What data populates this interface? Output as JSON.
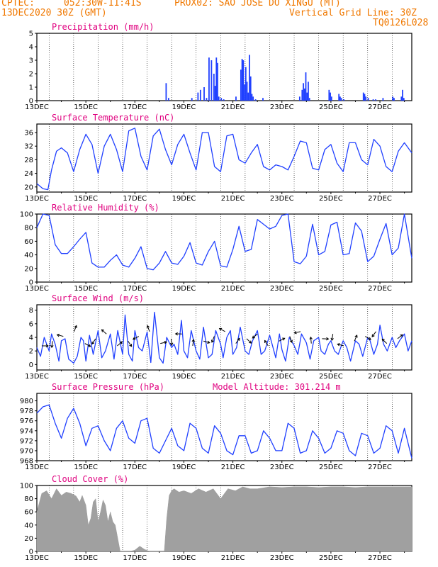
{
  "header": {
    "line1_left": "CPTEC:",
    "line1_coords": "052:30W-11:41S",
    "line1_station": "PROX02: SAO JOSE DO XINGU (MT)",
    "date": "13DEC2020 30Z (GMT)",
    "grid_note": "Vertical Grid Line: 30Z",
    "code": "TQ0126L028"
  },
  "colors": {
    "header": "#f07800",
    "title": "#e0007f",
    "line": "#2040ff",
    "bar": "#2040ff",
    "cloud": "#a0a0a0",
    "grid": "#000000"
  },
  "chart_data": [
    {
      "id": "precip",
      "type": "bar",
      "title": "Precipitation (mm/h)",
      "x_ticks": [
        "13DEC",
        "15DEC",
        "17DEC",
        "19DEC",
        "21DEC",
        "23DEC",
        "25DEC",
        "27DEC"
      ],
      "xlim": [
        0,
        15.3
      ],
      "ylim": [
        0,
        5
      ],
      "y_ticks": [
        0,
        1,
        2,
        3,
        4,
        5
      ],
      "x": [
        5.25,
        5.35,
        6.3,
        6.55,
        6.65,
        6.8,
        6.9,
        7.0,
        7.1,
        7.2,
        7.25,
        7.3,
        7.35,
        7.4,
        7.5,
        7.6,
        8.1,
        8.3,
        8.35,
        8.4,
        8.45,
        8.5,
        8.55,
        8.6,
        8.65,
        8.7,
        8.75,
        8.8,
        8.9,
        9.2,
        10.7,
        10.8,
        10.85,
        10.9,
        10.95,
        11.0,
        11.05,
        11.1,
        11.9,
        11.95,
        12.0,
        12.3,
        12.35,
        12.4,
        12.5,
        13.3,
        13.35,
        13.4,
        13.5,
        13.7,
        13.8,
        14.1,
        14.5,
        14.55,
        14.85,
        14.9,
        14.95
      ],
      "values": [
        1.3,
        0.2,
        0.2,
        0.6,
        0.8,
        1.0,
        0.2,
        3.2,
        3.0,
        2.0,
        1.1,
        3.2,
        2.8,
        0.3,
        0.2,
        0.1,
        0.3,
        2.3,
        3.1,
        3.0,
        1.2,
        2.5,
        1.4,
        0.6,
        3.4,
        1.8,
        0.5,
        0.3,
        0.1,
        0.2,
        0.3,
        0.8,
        1.3,
        0.9,
        2.1,
        0.6,
        1.4,
        0.2,
        0.8,
        0.6,
        0.3,
        0.5,
        0.3,
        0.2,
        0.1,
        0.6,
        0.5,
        0.3,
        0.2,
        0.1,
        0.1,
        0.2,
        0.3,
        0.2,
        0.3,
        0.8,
        0.2
      ]
    },
    {
      "id": "temp",
      "type": "line",
      "title": "Surface Temperature (nC)",
      "x_ticks": [
        "13DEC",
        "15DEC",
        "17DEC",
        "19DEC",
        "21DEC",
        "23DEC",
        "25DEC",
        "27DEC"
      ],
      "xlim": [
        0,
        15.3
      ],
      "ylim": [
        18.5,
        38.5
      ],
      "y_ticks": [
        20,
        24,
        28,
        32,
        36
      ],
      "x": [
        0.0,
        0.25,
        0.45,
        0.6,
        0.8,
        1.0,
        1.25,
        1.5,
        1.75,
        2.0,
        2.25,
        2.5,
        2.75,
        3.0,
        3.25,
        3.5,
        3.75,
        4.0,
        4.25,
        4.5,
        4.75,
        5.0,
        5.25,
        5.5,
        5.75,
        6.0,
        6.25,
        6.5,
        6.75,
        7.0,
        7.25,
        7.5,
        7.75,
        8.0,
        8.25,
        8.5,
        8.75,
        9.0,
        9.25,
        9.5,
        9.75,
        10.0,
        10.25,
        10.5,
        10.75,
        11.0,
        11.25,
        11.5,
        11.75,
        12.0,
        12.25,
        12.5,
        12.75,
        13.0,
        13.25,
        13.5,
        13.75,
        14.0,
        14.25,
        14.5,
        14.75,
        15.0,
        15.3
      ],
      "values": [
        21,
        19.5,
        19.2,
        25,
        30.5,
        31.5,
        30,
        24.5,
        31,
        35.5,
        32.5,
        24,
        32,
        35.5,
        31,
        24.5,
        36.5,
        37.3,
        29,
        25,
        35,
        37,
        31,
        26.5,
        32.5,
        35.5,
        30,
        25,
        36,
        36,
        26,
        24.5,
        35,
        35.5,
        28,
        27,
        30,
        32.5,
        26,
        25,
        26.5,
        26,
        25,
        29,
        33.5,
        33,
        25.5,
        25,
        31,
        32.5,
        27,
        24.5,
        33,
        33,
        28,
        26.5,
        34,
        32,
        26,
        24.5,
        30.5,
        33,
        30
      ]
    },
    {
      "id": "rh",
      "type": "line",
      "title": "Relative Humidity (%)",
      "x_ticks": [
        "13DEC",
        "15DEC",
        "17DEC",
        "19DEC",
        "21DEC",
        "23DEC",
        "25DEC",
        "27DEC"
      ],
      "xlim": [
        0,
        15.3
      ],
      "ylim": [
        0,
        100
      ],
      "y_ticks": [
        0,
        20,
        40,
        60,
        80,
        100
      ],
      "x": [
        0.0,
        0.25,
        0.5,
        0.75,
        1.0,
        1.25,
        1.5,
        1.75,
        2.0,
        2.25,
        2.5,
        2.75,
        3.0,
        3.25,
        3.5,
        3.75,
        4.0,
        4.25,
        4.5,
        4.75,
        5.0,
        5.25,
        5.5,
        5.75,
        6.0,
        6.25,
        6.5,
        6.75,
        7.0,
        7.25,
        7.5,
        7.75,
        8.0,
        8.25,
        8.5,
        8.75,
        9.0,
        9.25,
        9.5,
        9.75,
        10.0,
        10.25,
        10.5,
        10.75,
        11.0,
        11.25,
        11.5,
        11.75,
        12.0,
        12.25,
        12.5,
        12.75,
        13.0,
        13.25,
        13.5,
        13.75,
        14.0,
        14.25,
        14.5,
        14.75,
        15.0,
        15.3
      ],
      "values": [
        80,
        100,
        98,
        55,
        42,
        42,
        52,
        63,
        73,
        28,
        22,
        22,
        32,
        40,
        25,
        22,
        35,
        52,
        20,
        18,
        28,
        45,
        28,
        26,
        38,
        58,
        28,
        25,
        45,
        60,
        24,
        22,
        48,
        82,
        45,
        48,
        92,
        85,
        78,
        82,
        98,
        100,
        30,
        27,
        38,
        85,
        40,
        45,
        84,
        88,
        40,
        42,
        87,
        75,
        30,
        38,
        63,
        86,
        40,
        50,
        100,
        35
      ]
    },
    {
      "id": "wind",
      "type": "line",
      "title": "Surface Wind (m/s)",
      "x_ticks": [
        "13DEC",
        "15DEC",
        "17DEC",
        "19DEC",
        "21DEC",
        "23DEC",
        "25DEC",
        "27DEC"
      ],
      "xlim": [
        0,
        15.3
      ],
      "ylim": [
        -0.8,
        8.8
      ],
      "y_ticks": [
        0,
        2,
        4,
        6,
        8
      ],
      "x": [
        0.0,
        0.15,
        0.3,
        0.5,
        0.6,
        0.75,
        0.9,
        1.0,
        1.15,
        1.3,
        1.5,
        1.65,
        1.8,
        1.9,
        2.0,
        2.15,
        2.3,
        2.5,
        2.65,
        2.8,
        3.0,
        3.15,
        3.3,
        3.5,
        3.6,
        3.75,
        3.9,
        4.0,
        4.15,
        4.3,
        4.5,
        4.65,
        4.8,
        5.0,
        5.15,
        5.3,
        5.5,
        5.6,
        5.75,
        5.9,
        6.0,
        6.15,
        6.3,
        6.5,
        6.65,
        6.8,
        7.0,
        7.15,
        7.3,
        7.5,
        7.6,
        7.75,
        7.9,
        8.0,
        8.15,
        8.3,
        8.5,
        8.65,
        8.8,
        9.0,
        9.15,
        9.3,
        9.5,
        9.6,
        9.75,
        9.9,
        10.0,
        10.15,
        10.3,
        10.5,
        10.65,
        10.8,
        11.0,
        11.15,
        11.3,
        11.5,
        11.6,
        11.75,
        11.9,
        12.0,
        12.15,
        12.3,
        12.5,
        12.65,
        12.8,
        13.0,
        13.15,
        13.3,
        13.5,
        13.6,
        13.75,
        13.9,
        14.0,
        14.15,
        14.3,
        14.5,
        14.65,
        14.8,
        15.0,
        15.15,
        15.3
      ],
      "values": [
        2.5,
        1.2,
        4.0,
        2.0,
        4.5,
        3.0,
        0.5,
        3.5,
        3.8,
        0.8,
        0.2,
        1.2,
        4.0,
        3.5,
        0.5,
        4.3,
        1.5,
        5.0,
        1.0,
        2.0,
        4.5,
        0.8,
        5.0,
        1.5,
        7.3,
        1.5,
        0.5,
        5.0,
        2.5,
        2.0,
        4.8,
        0.3,
        7.7,
        1.0,
        0.2,
        4.0,
        2.5,
        3.0,
        1.5,
        6.5,
        2.0,
        1.0,
        5.0,
        2.0,
        0.8,
        5.5,
        1.0,
        1.5,
        5.0,
        3.0,
        1.0,
        4.0,
        5.0,
        1.5,
        2.5,
        5.5,
        2.0,
        1.5,
        3.5,
        5.0,
        1.5,
        2.0,
        4.3,
        3.0,
        1.0,
        4.5,
        2.2,
        0.5,
        4.0,
        2.8,
        1.5,
        4.5,
        3.2,
        0.8,
        3.5,
        4.0,
        2.0,
        1.5,
        3.0,
        3.5,
        2.0,
        1.5,
        3.5,
        2.5,
        0.5,
        3.5,
        3.0,
        1.2,
        4.0,
        3.5,
        1.5,
        3.0,
        5.8,
        3.0,
        2.0,
        4.0,
        2.5,
        3.5,
        4.5,
        2.0,
        3.5
      ]
    },
    {
      "id": "pressure",
      "type": "line",
      "title": "Surface Pressure (hPa)",
      "annotation": "Model Altitude: 301.214 m",
      "x_ticks": [
        "13DEC",
        "15DEC",
        "17DEC",
        "19DEC",
        "21DEC",
        "23DEC",
        "25DEC",
        "27DEC"
      ],
      "xlim": [
        0,
        15.3
      ],
      "ylim": [
        968,
        981.5
      ],
      "y_ticks": [
        968,
        970,
        972,
        974,
        976,
        978,
        980
      ],
      "x": [
        0.0,
        0.25,
        0.5,
        0.75,
        1.0,
        1.25,
        1.5,
        1.75,
        2.0,
        2.25,
        2.5,
        2.75,
        3.0,
        3.25,
        3.5,
        3.75,
        4.0,
        4.25,
        4.5,
        4.75,
        5.0,
        5.25,
        5.5,
        5.75,
        6.0,
        6.25,
        6.5,
        6.75,
        7.0,
        7.25,
        7.5,
        7.75,
        8.0,
        8.25,
        8.5,
        8.75,
        9.0,
        9.25,
        9.5,
        9.75,
        10.0,
        10.25,
        10.5,
        10.75,
        11.0,
        11.25,
        11.5,
        11.75,
        12.0,
        12.25,
        12.5,
        12.75,
        13.0,
        13.25,
        13.5,
        13.75,
        14.0,
        14.25,
        14.5,
        14.75,
        15.0,
        15.3
      ],
      "values": [
        977.5,
        978.8,
        979.2,
        975.5,
        972.5,
        976.5,
        978.5,
        975.5,
        971.0,
        974.5,
        975.0,
        972.0,
        970.0,
        974.5,
        976.0,
        972.5,
        971.5,
        976.0,
        976.5,
        970.5,
        969.5,
        972.0,
        974.5,
        971.0,
        970.0,
        975.5,
        974.5,
        970.5,
        969.5,
        975.0,
        973.5,
        970.0,
        969.2,
        973.0,
        973.0,
        969.5,
        970.0,
        974.0,
        972.5,
        970.0,
        970.0,
        975.5,
        974.5,
        969.5,
        970.0,
        974.0,
        972.5,
        969.5,
        970.5,
        974.0,
        973.5,
        970.0,
        969.0,
        973.5,
        973.0,
        969.5,
        970.5,
        975.0,
        974.0,
        969.5,
        974.5,
        968.5
      ]
    },
    {
      "id": "cloud",
      "type": "area",
      "title": "Cloud Cover (%)",
      "x_ticks": [
        "13DEC",
        "15DEC",
        "17DEC",
        "19DEC",
        "21DEC",
        "23DEC",
        "25DEC",
        "27DEC"
      ],
      "xlim": [
        0,
        15.3
      ],
      "ylim": [
        0,
        100
      ],
      "y_ticks": [
        0,
        20,
        40,
        60,
        80,
        100
      ],
      "x": [
        0.0,
        0.2,
        0.4,
        0.6,
        0.8,
        1.0,
        1.2,
        1.4,
        1.6,
        1.75,
        1.85,
        2.0,
        2.1,
        2.2,
        2.3,
        2.4,
        2.5,
        2.6,
        2.7,
        2.8,
        2.9,
        3.0,
        3.1,
        3.2,
        3.4,
        3.6,
        3.8,
        4.0,
        4.2,
        4.4,
        4.6,
        4.8,
        5.0,
        5.2,
        5.3,
        5.4,
        5.5,
        5.6,
        5.8,
        6.0,
        6.3,
        6.6,
        6.9,
        7.2,
        7.5,
        7.8,
        8.1,
        8.4,
        8.7,
        9.0,
        9.5,
        10.0,
        10.5,
        11.0,
        11.5,
        12.0,
        12.5,
        13.0,
        13.5,
        14.0,
        14.5,
        15.0,
        15.3
      ],
      "values": [
        60,
        88,
        92,
        80,
        95,
        85,
        90,
        88,
        84,
        75,
        85,
        70,
        40,
        50,
        75,
        80,
        45,
        60,
        78,
        70,
        45,
        60,
        45,
        40,
        0,
        0,
        0,
        2,
        8,
        3,
        0,
        0,
        0,
        0,
        50,
        85,
        92,
        95,
        90,
        92,
        88,
        95,
        90,
        95,
        80,
        95,
        92,
        98,
        95,
        95,
        98,
        97,
        98,
        98,
        97,
        98,
        98,
        97,
        98,
        98,
        98,
        98,
        98
      ]
    }
  ]
}
